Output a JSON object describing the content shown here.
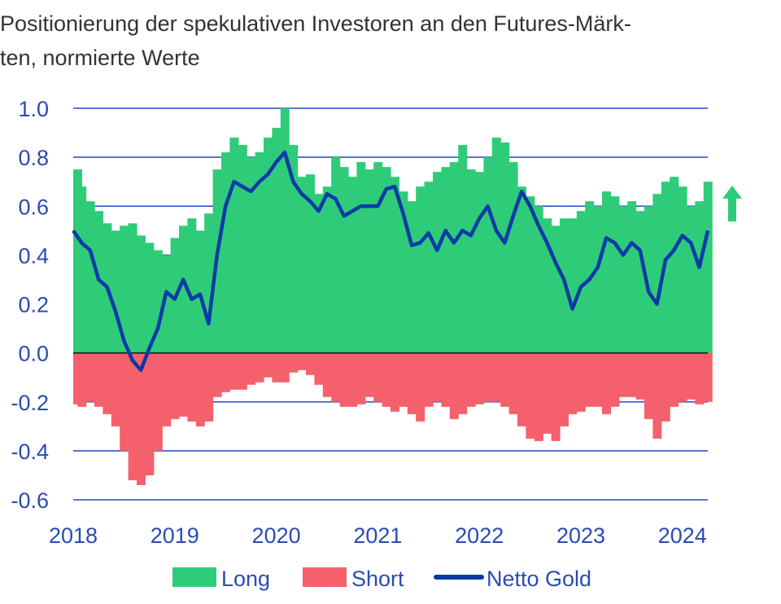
{
  "chart_data": {
    "type": "bar",
    "title": "Positionierung der spekulativen Investoren an den Futures-Märk-ten, normierte Werte",
    "title_lines": [
      "Positionierung der spekulativen Investoren an den Futures-Märk-",
      "ten, normierte Werte"
    ],
    "xlabel": "",
    "ylabel": "",
    "ylim": [
      -0.6,
      1.0
    ],
    "xlim": [
      2018,
      2024.25
    ],
    "yticks": [
      "1.0",
      "0.8",
      "0.6",
      "0.4",
      "0.2",
      "0.0",
      "-0.2",
      "-0.4",
      "-0.6"
    ],
    "xticks": [
      "2018",
      "2019",
      "2020",
      "2021",
      "2022",
      "2023",
      "2024"
    ],
    "grid": true,
    "legend_position": "bottom",
    "x_frequency": "monthly, starting January 2018",
    "series": [
      {
        "name": "Long",
        "type": "bar",
        "color": "#2ecc78",
        "values": [
          0.75,
          0.68,
          0.62,
          0.58,
          0.53,
          0.5,
          0.52,
          0.53,
          0.48,
          0.45,
          0.42,
          0.4,
          0.47,
          0.52,
          0.55,
          0.5,
          0.57,
          0.75,
          0.82,
          0.88,
          0.85,
          0.8,
          0.82,
          0.88,
          0.92,
          1.0,
          0.85,
          0.72,
          0.73,
          0.65,
          0.68,
          0.8,
          0.76,
          0.72,
          0.78,
          0.75,
          0.78,
          0.76,
          0.72,
          0.66,
          0.62,
          0.68,
          0.7,
          0.74,
          0.76,
          0.78,
          0.85,
          0.75,
          0.74,
          0.8,
          0.88,
          0.86,
          0.78,
          0.68,
          0.64,
          0.6,
          0.55,
          0.52,
          0.55,
          0.55,
          0.58,
          0.62,
          0.6,
          0.66,
          0.64,
          0.6,
          0.62,
          0.58,
          0.6,
          0.65,
          0.7,
          0.72,
          0.68,
          0.6,
          0.62,
          0.7
        ]
      },
      {
        "name": "Short",
        "type": "bar",
        "color": "#f4606c",
        "values": [
          -0.21,
          -0.22,
          -0.2,
          -0.22,
          -0.25,
          -0.3,
          -0.4,
          -0.52,
          -0.54,
          -0.5,
          -0.4,
          -0.3,
          -0.27,
          -0.26,
          -0.28,
          -0.3,
          -0.28,
          -0.18,
          -0.16,
          -0.15,
          -0.15,
          -0.13,
          -0.12,
          -0.1,
          -0.12,
          -0.12,
          -0.08,
          -0.07,
          -0.09,
          -0.13,
          -0.18,
          -0.2,
          -0.22,
          -0.22,
          -0.21,
          -0.18,
          -0.2,
          -0.22,
          -0.24,
          -0.22,
          -0.25,
          -0.28,
          -0.22,
          -0.2,
          -0.22,
          -0.27,
          -0.25,
          -0.22,
          -0.21,
          -0.2,
          -0.2,
          -0.22,
          -0.25,
          -0.3,
          -0.35,
          -0.36,
          -0.33,
          -0.36,
          -0.3,
          -0.25,
          -0.24,
          -0.22,
          -0.22,
          -0.25,
          -0.22,
          -0.18,
          -0.18,
          -0.19,
          -0.27,
          -0.35,
          -0.28,
          -0.22,
          -0.2,
          -0.19,
          -0.21,
          -0.2
        ]
      },
      {
        "name": "Netto Gold",
        "type": "line",
        "color": "#0a3aa8",
        "values": [
          0.5,
          0.45,
          0.42,
          0.3,
          0.27,
          0.17,
          0.05,
          -0.03,
          -0.07,
          0.02,
          0.1,
          0.25,
          0.22,
          0.3,
          0.22,
          0.24,
          0.12,
          0.4,
          0.6,
          0.7,
          0.68,
          0.66,
          0.7,
          0.73,
          0.78,
          0.82,
          0.7,
          0.65,
          0.62,
          0.58,
          0.65,
          0.63,
          0.56,
          0.58,
          0.6,
          0.6,
          0.6,
          0.67,
          0.68,
          0.57,
          0.44,
          0.45,
          0.49,
          0.42,
          0.5,
          0.45,
          0.5,
          0.48,
          0.55,
          0.6,
          0.5,
          0.45,
          0.56,
          0.66,
          0.6,
          0.52,
          0.45,
          0.37,
          0.3,
          0.18,
          0.27,
          0.3,
          0.35,
          0.47,
          0.45,
          0.4,
          0.45,
          0.42,
          0.25,
          0.2,
          0.38,
          0.42,
          0.48,
          0.45,
          0.35,
          0.5
        ]
      }
    ],
    "annotation": {
      "icon": "up-arrow-icon",
      "color": "#2ecc78"
    }
  }
}
